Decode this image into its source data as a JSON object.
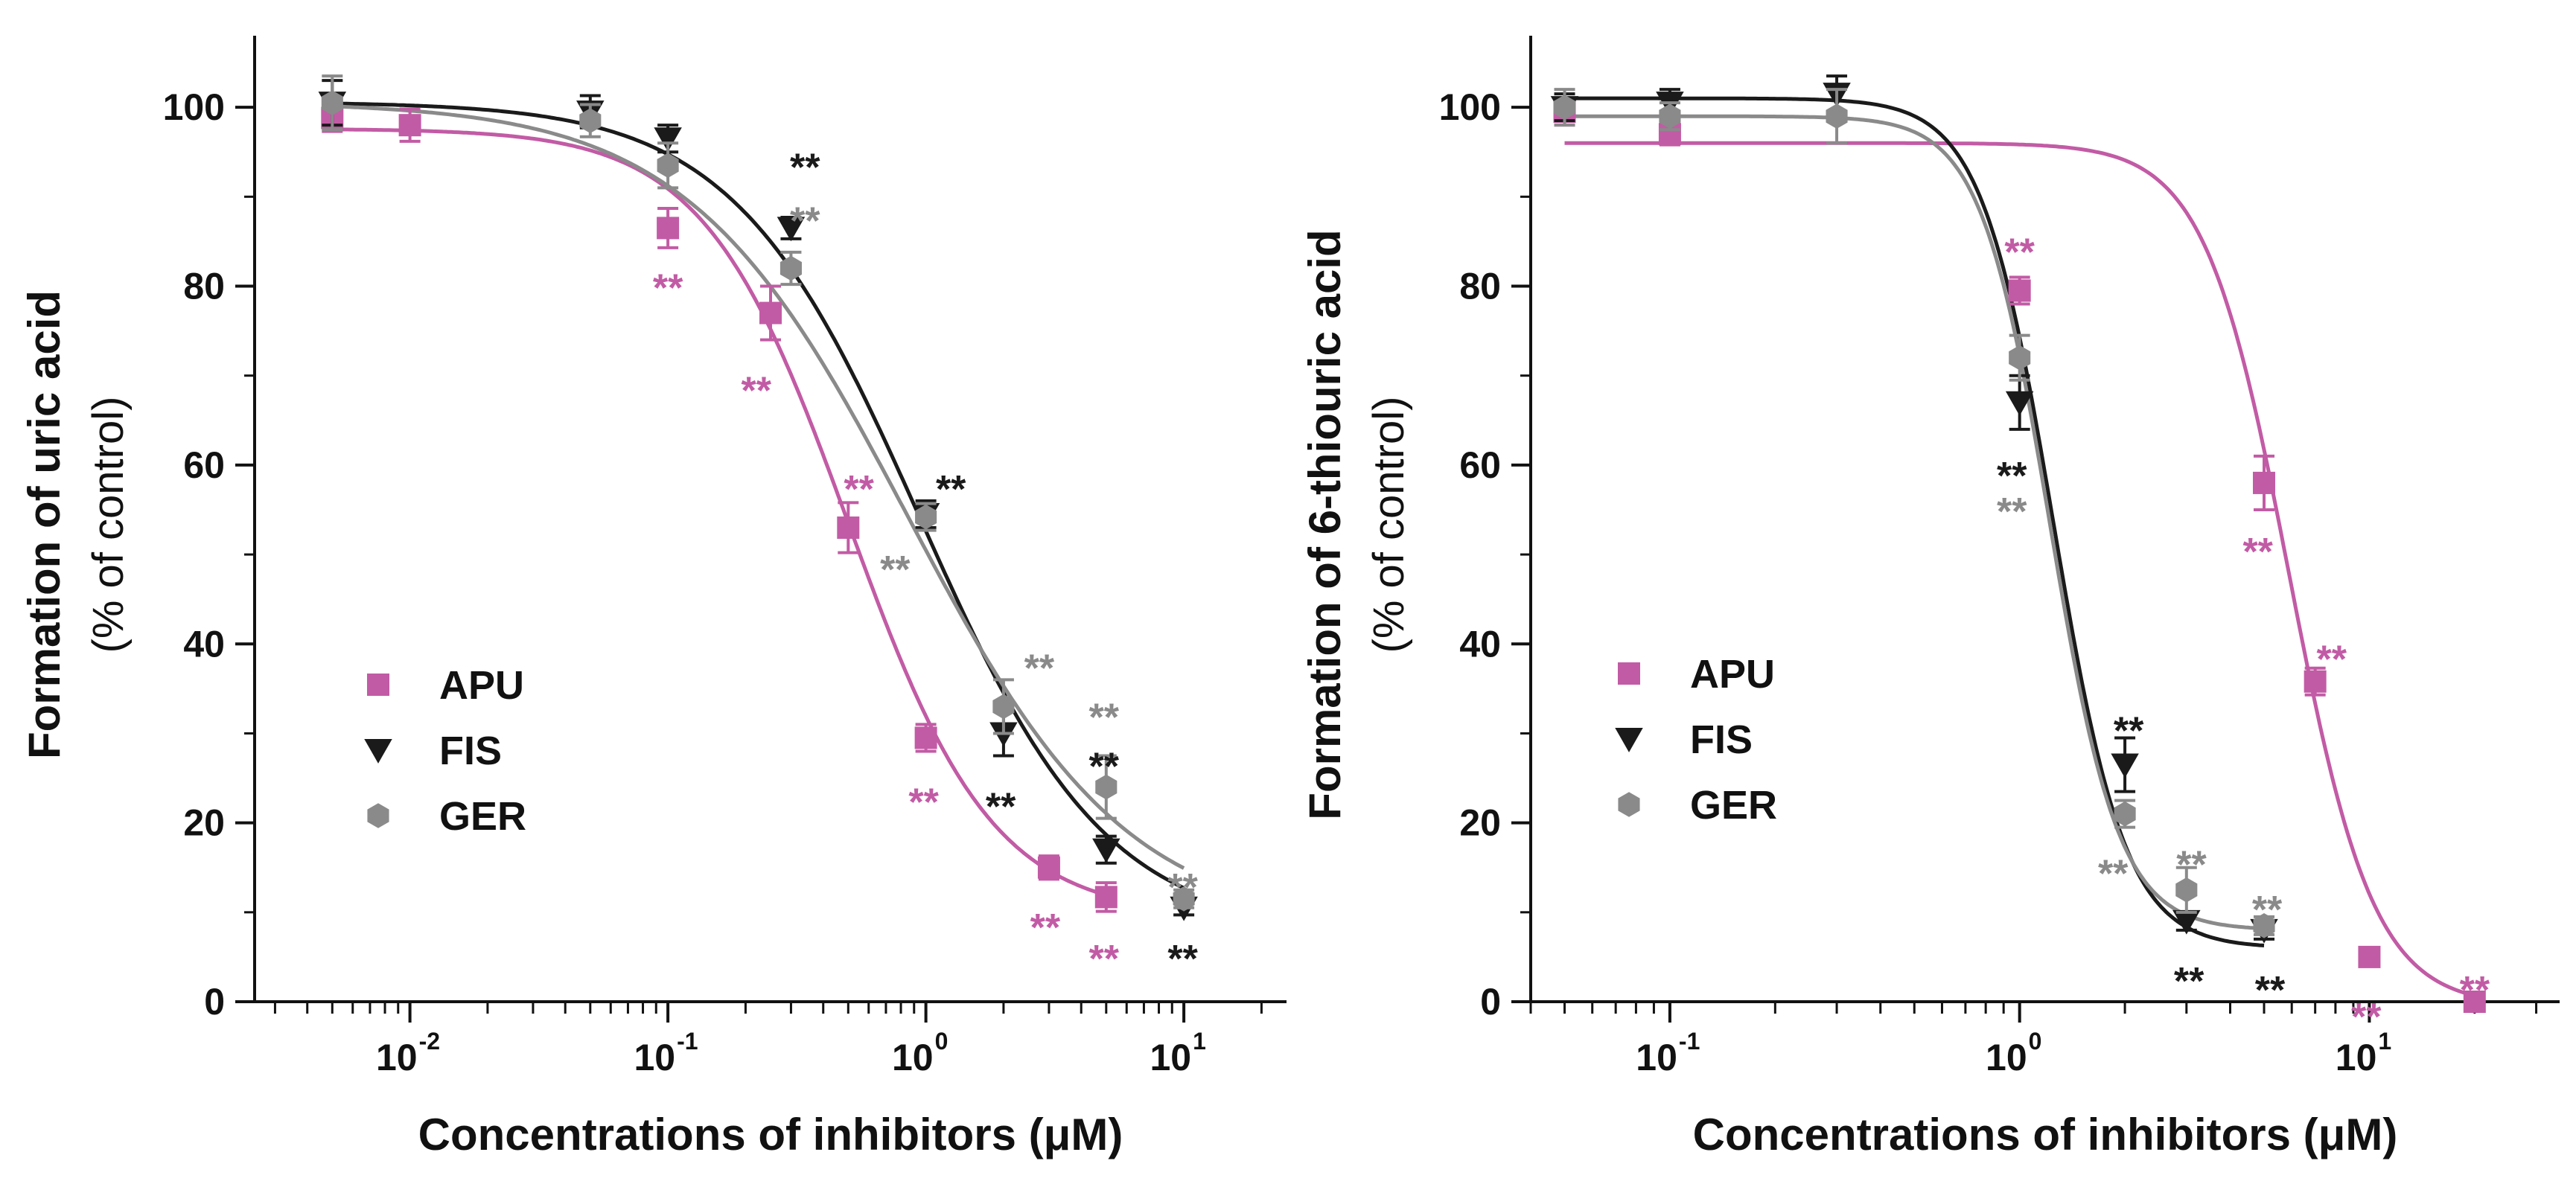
{
  "colors": {
    "APU": "#c25ba5",
    "FIS": "#1a1a1a",
    "GER": "#8a8a8a"
  },
  "chart_data": [
    {
      "type": "scatter",
      "name": "uric-acid",
      "xscale": "log",
      "xlim": [
        0.0025,
        25
      ],
      "ylim": [
        0,
        108
      ],
      "ylabel": "Formation of uric acid",
      "ylabel_sub": "(% of control)",
      "xlabel": "Concentrations of inhibitors (μM)",
      "yticks": [
        0,
        20,
        40,
        60,
        80,
        100
      ],
      "yticks_text": [
        "0",
        "20",
        "40",
        "60",
        "80",
        "100"
      ],
      "xticks": [
        {
          "value": 0.01,
          "base": "10",
          "exp": "-2"
        },
        {
          "value": 0.1,
          "base": "10",
          "exp": "-1"
        },
        {
          "value": 1,
          "base": "10",
          "exp": "0"
        },
        {
          "value": 10,
          "base": "10",
          "exp": "1"
        }
      ],
      "legend": {
        "position": "lower-left",
        "entries": [
          "APU",
          "FIS",
          "GER"
        ]
      },
      "series": [
        {
          "name": "APU",
          "marker": "square",
          "fit": {
            "top": 97.6,
            "bottom": 9.5,
            "ic50": 0.5,
            "hill": 1.55
          },
          "points": [
            {
              "x": 0.005,
              "y": 98.8,
              "err": 1.5
            },
            {
              "x": 0.01,
              "y": 98,
              "err": 1.8
            },
            {
              "x": 0.1,
              "y": 86.5,
              "err": 2.2
            },
            {
              "x": 0.25,
              "y": 77,
              "err": 3
            },
            {
              "x": 0.5,
              "y": 53,
              "err": 2.8
            },
            {
              "x": 1,
              "y": 29.5,
              "err": 1.5
            },
            {
              "x": 3,
              "y": 15,
              "err": 1.3
            },
            {
              "x": 5,
              "y": 11.7,
              "err": 1.6
            }
          ]
        },
        {
          "name": "FIS",
          "marker": "triangle-down",
          "fit": {
            "top": 100.6,
            "bottom": 7.5,
            "ic50": 0.95,
            "hill": 1.2
          },
          "points": [
            {
              "x": 0.005,
              "y": 100.5,
              "err": 2.5
            },
            {
              "x": 0.05,
              "y": 99.5,
              "err": 1.8
            },
            {
              "x": 0.1,
              "y": 96.5,
              "err": 1.5
            },
            {
              "x": 0.3,
              "y": 86.5,
              "err": 1.2
            },
            {
              "x": 1,
              "y": 54.5,
              "err": 1.5
            },
            {
              "x": 2,
              "y": 30,
              "err": 2.5
            },
            {
              "x": 5,
              "y": 17,
              "err": 1.5
            },
            {
              "x": 10,
              "y": 10.5,
              "err": 0.8
            }
          ]
        },
        {
          "name": "GER",
          "marker": "hexagon",
          "fit": {
            "top": 100.6,
            "bottom": 8,
            "ic50": 0.85,
            "hill": 1.02
          },
          "points": [
            {
              "x": 0.005,
              "y": 100.5,
              "err": 3
            },
            {
              "x": 0.05,
              "y": 98.5,
              "err": 1.8
            },
            {
              "x": 0.1,
              "y": 93.5,
              "err": 2.5
            },
            {
              "x": 0.3,
              "y": 82,
              "err": 1.8
            },
            {
              "x": 1,
              "y": 54.2,
              "err": 1.5
            },
            {
              "x": 2,
              "y": 33,
              "err": 3
            },
            {
              "x": 5,
              "y": 24,
              "err": 3.5
            },
            {
              "x": 10,
              "y": 11.5,
              "err": 1
            }
          ]
        }
      ],
      "annotations": [
        {
          "text": "**",
          "series": "APU",
          "x": 0.1,
          "y": 80
        },
        {
          "text": "**",
          "series": "APU",
          "x": 0.22,
          "y": 68.5
        },
        {
          "text": "**",
          "series": "APU",
          "x": 0.55,
          "y": 57.5
        },
        {
          "text": "**",
          "series": "APU",
          "x": 0.98,
          "y": 22.5
        },
        {
          "text": "**",
          "series": "APU",
          "x": 2.9,
          "y": 8.5
        },
        {
          "text": "**",
          "series": "APU",
          "x": 4.9,
          "y": 5
        },
        {
          "text": "**",
          "series": "FIS",
          "x": 0.34,
          "y": 93.5
        },
        {
          "text": "**",
          "series": "FIS",
          "x": 1.25,
          "y": 57.5
        },
        {
          "text": "**",
          "series": "FIS",
          "x": 1.95,
          "y": 22
        },
        {
          "text": "**",
          "series": "FIS",
          "x": 4.9,
          "y": 26.5
        },
        {
          "text": "**",
          "series": "FIS",
          "x": 9.9,
          "y": 5
        },
        {
          "text": "**",
          "series": "GER",
          "x": 0.34,
          "y": 87.5
        },
        {
          "text": "**",
          "series": "GER",
          "x": 0.76,
          "y": 48.5
        },
        {
          "text": "**",
          "series": "GER",
          "x": 2.75,
          "y": 37.5
        },
        {
          "text": "**",
          "series": "GER",
          "x": 4.9,
          "y": 32
        },
        {
          "text": "**",
          "series": "GER",
          "x": 9.9,
          "y": 13
        }
      ]
    },
    {
      "type": "scatter",
      "name": "thiouric-acid",
      "xscale": "log",
      "xlim": [
        0.04,
        35
      ],
      "ylim": [
        0,
        108
      ],
      "ylabel": "Formation of 6-thiouric acid",
      "ylabel_sub": "(% of control)",
      "xlabel": "Concentrations of inhibitors (μM)",
      "yticks": [
        0,
        20,
        40,
        60,
        80,
        100
      ],
      "yticks_text": [
        "0",
        "20",
        "40",
        "60",
        "80",
        "100"
      ],
      "xticks": [
        {
          "value": 0.1,
          "base": "10",
          "exp": "-1"
        },
        {
          "value": 1,
          "base": "10",
          "exp": "0"
        },
        {
          "value": 10,
          "base": "10",
          "exp": "1"
        }
      ],
      "legend": {
        "position": "lower-left",
        "entries": [
          "APU",
          "FIS",
          "GER"
        ]
      },
      "series": [
        {
          "name": "APU",
          "marker": "square",
          "fit": {
            "top": 96,
            "bottom": -0.5,
            "ic50": 5.9,
            "hill": 3.6
          },
          "points": [
            {
              "x": 0.05,
              "y": 99.5,
              "err": 1.5
            },
            {
              "x": 0.1,
              "y": 97,
              "err": 1.2
            },
            {
              "x": 1,
              "y": 79.5,
              "err": 1.5
            },
            {
              "x": 5,
              "y": 58,
              "err": 3
            },
            {
              "x": 7,
              "y": 35.8,
              "err": 1.5
            },
            {
              "x": 10,
              "y": 5,
              "err": 0.8
            },
            {
              "x": 20,
              "y": 0,
              "err": 0.3
            }
          ]
        },
        {
          "name": "FIS",
          "marker": "triangle-down",
          "fit": {
            "top": 101,
            "bottom": 6,
            "ic50": 1.25,
            "hill": 4.2
          },
          "points": [
            {
              "x": 0.05,
              "y": 100,
              "err": 1.5
            },
            {
              "x": 0.1,
              "y": 100.5,
              "err": 1.5
            },
            {
              "x": 0.3,
              "y": 101.5,
              "err": 2
            },
            {
              "x": 1,
              "y": 67,
              "err": 3
            },
            {
              "x": 2,
              "y": 26.5,
              "err": 3
            },
            {
              "x": 3,
              "y": 9,
              "err": 1
            },
            {
              "x": 5,
              "y": 8,
              "err": 1
            }
          ]
        },
        {
          "name": "GER",
          "marker": "hexagon",
          "fit": {
            "top": 99,
            "bottom": 8,
            "ic50": 1.22,
            "hill": 4.4
          },
          "points": [
            {
              "x": 0.05,
              "y": 100,
              "err": 2
            },
            {
              "x": 0.1,
              "y": 99,
              "err": 1.5
            },
            {
              "x": 0.3,
              "y": 99,
              "err": 3
            },
            {
              "x": 1,
              "y": 72,
              "err": 2.5
            },
            {
              "x": 2,
              "y": 21,
              "err": 1.5
            },
            {
              "x": 3,
              "y": 12.5,
              "err": 2.5
            },
            {
              "x": 5,
              "y": 8.5,
              "err": 1
            }
          ]
        }
      ],
      "annotations": [
        {
          "text": "**",
          "series": "APU",
          "x": 1.0,
          "y": 84
        },
        {
          "text": "**",
          "series": "APU",
          "x": 4.8,
          "y": 50.5
        },
        {
          "text": "**",
          "series": "APU",
          "x": 7.8,
          "y": 38.5
        },
        {
          "text": "**",
          "series": "APU",
          "x": 9.8,
          "y": -1.5
        },
        {
          "text": "**",
          "series": "APU",
          "x": 20,
          "y": 1.5
        },
        {
          "text": "**",
          "series": "FIS",
          "x": 0.95,
          "y": 59
        },
        {
          "text": "**",
          "series": "FIS",
          "x": 2.05,
          "y": 30.5
        },
        {
          "text": "**",
          "series": "FIS",
          "x": 3.05,
          "y": 2.5
        },
        {
          "text": "**",
          "series": "FIS",
          "x": 5.2,
          "y": 1.5
        },
        {
          "text": "**",
          "series": "GER",
          "x": 0.95,
          "y": 55
        },
        {
          "text": "**",
          "series": "GER",
          "x": 1.85,
          "y": 14.5
        },
        {
          "text": "**",
          "series": "GER",
          "x": 3.1,
          "y": 15.5
        },
        {
          "text": "**",
          "series": "GER",
          "x": 5.1,
          "y": 10.5
        }
      ]
    }
  ]
}
